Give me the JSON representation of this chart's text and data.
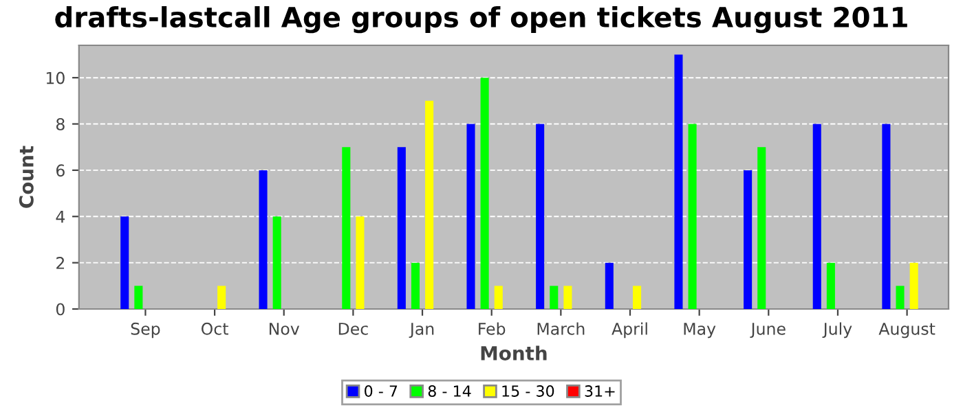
{
  "chart_data": {
    "type": "bar",
    "title": "drafts-lastcall Age groups of open tickets August 2011",
    "xlabel": "Month",
    "ylabel": "Count",
    "categories": [
      "Sep",
      "Oct",
      "Nov",
      "Dec",
      "Jan",
      "Feb",
      "March",
      "April",
      "May",
      "June",
      "July",
      "August"
    ],
    "series": [
      {
        "name": "0 - 7",
        "color": "#0000ff",
        "values": [
          4,
          0,
          6,
          0,
          7,
          8,
          8,
          2,
          11,
          6,
          8,
          8
        ]
      },
      {
        "name": "8 - 14",
        "color": "#00ff00",
        "values": [
          1,
          0,
          4,
          7,
          2,
          10,
          1,
          0,
          8,
          7,
          2,
          1
        ]
      },
      {
        "name": "15 - 30",
        "color": "#ffff00",
        "values": [
          0,
          1,
          0,
          4,
          9,
          1,
          1,
          1,
          0,
          0,
          0,
          2
        ]
      },
      {
        "name": "31+",
        "color": "#ff0000",
        "values": [
          0,
          0,
          0,
          0,
          0,
          0,
          0,
          0,
          0,
          0,
          0,
          0
        ]
      }
    ],
    "ylim": [
      0,
      11.4
    ],
    "yticks": [
      0,
      2,
      4,
      6,
      8,
      10
    ],
    "grid": "y",
    "legend": "bottom"
  }
}
